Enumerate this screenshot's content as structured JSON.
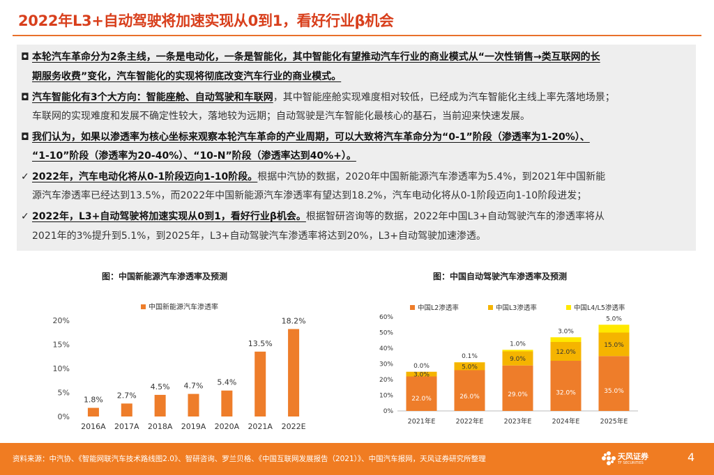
{
  "slide": {
    "title": "2022年L3+自动驾驶将加速实现从0到1，看好行业β机会",
    "page_number": "4"
  },
  "points": {
    "marker_box": "◘",
    "marker_check": "✓",
    "p1_bold_a": "本轮汽车革命分为2条主线，一条是电动化，一条是智能化，其中智能化有望推动汽车行业的商业模式从“一次性销售→类互联网的长",
    "p1_bold_b": "期服务收费”变化，汽车智能化的实现将彻底改变汽车行业的商业模式。",
    "p2_bold": "汽车智能化有3个大方向：智能座舱、自动驾驶和车联网",
    "p2_rest_a": "，其中智能座舱实现难度相对较低，已经成为汽车智能化主线上率先落地场景；",
    "p2_rest_b": "车联网的实现难度和发展不确定性较大，落地较为远期；自动驾驶是汽车智能化最核心的基石，当前迎来快速发展。",
    "p3_bold_a": "我们认为，如果以渗透率为核心坐标来观察本轮汽车革命的产业周期，可以大致将汽车革命分为“0-1”阶段（渗透率为1-20%）、",
    "p3_bold_b": "“1-10”阶段（渗透率为20-40%）、“10-N”阶段（渗透率达到40%+）。",
    "p4_bold": "2022年，汽车电动化将从0-1阶段迈向1-10阶段。",
    "p4_rest_a": "根据中汽协的数据，2020年中国新能源汽车渗透率为5.4%，到2021年中国新能",
    "p4_rest_b": "源汽车渗透率已经达到13.5%，而2022年中国新能源汽车渗透率有望达到18.2%，汽车电动化将从0-1阶段迈向1-10阶段进发；",
    "p5_bold": "2022年，L3+自动驾驶将加速实现从0到1，看好行业β机会。",
    "p5_rest_a": "根据智研咨询等的数据，2022年中国L3+自动驾驶汽车的渗透率将从",
    "p5_rest_b": "2021年的3%提升到5.1%，到2025年，L3+自动驾驶汽车渗透率将达到20%，L3+自动驾驶加速渗透。"
  },
  "chart_data": [
    {
      "type": "bar",
      "title": "图：中国新能源汽车渗透率及预测",
      "categories": [
        "2016A",
        "2017A",
        "2018A",
        "2019A",
        "2020A",
        "2021A",
        "2022E"
      ],
      "series": [
        {
          "name": "中国新能源汽车渗透率",
          "values": [
            1.8,
            2.7,
            4.5,
            4.7,
            5.4,
            13.5,
            18.2
          ],
          "color": "#ee7d2a"
        }
      ],
      "data_labels": [
        "1.8%",
        "2.7%",
        "4.5%",
        "4.7%",
        "5.4%",
        "13.5%",
        "18.2%"
      ],
      "ylim": [
        0,
        20
      ],
      "yticks": [
        "0%",
        "5%",
        "10%",
        "15%",
        "20%"
      ],
      "legend": "top",
      "grid": false
    },
    {
      "type": "bar",
      "stacked": true,
      "title": "图：中国自动驾驶汽车渗透率及预测",
      "categories": [
        "2021年E",
        "2022年E",
        "2023年E",
        "2024年E",
        "2025年E"
      ],
      "series": [
        {
          "name": "中国L2渗透率",
          "values": [
            22.0,
            26.0,
            29.0,
            32.0,
            35.0
          ],
          "labels": [
            "22.0%",
            "26.0%",
            "29.0%",
            "32.0%",
            "35.0%"
          ],
          "color": "#ee7d2a"
        },
        {
          "name": "中国L3渗透率",
          "values": [
            3.0,
            5.0,
            9.0,
            12.0,
            15.0
          ],
          "labels": [
            "3.0%",
            "5.0%",
            "9.0%",
            "12.0%",
            "15.0%"
          ],
          "color": "#f5b400"
        },
        {
          "name": "中国L4/L5渗透率",
          "values": [
            0.0,
            0.1,
            1.0,
            3.0,
            5.0
          ],
          "labels": [
            "0.0%",
            "0.1%",
            "1.0%",
            "3.0%",
            "5.0%"
          ],
          "color": "#ffe800"
        }
      ],
      "ylim": [
        0,
        60
      ],
      "yticks": [
        "0%",
        "10%",
        "20%",
        "30%",
        "40%",
        "50%",
        "60%"
      ],
      "legend": "top",
      "grid": false
    }
  ],
  "footer": {
    "source": "资料来源：中汽协、《智能网联汽车技术路线图2.0》、智研咨询、罗兰贝格、《中国互联网发展报告（2021）》、中国汽车报网，天风证券研究所整理",
    "logo_name": "天风证券",
    "logo_sub": "TF SECURITIES"
  },
  "colors": {
    "title": "#d83f1c",
    "accent": "#f07c22",
    "panel": "#eeeeee"
  }
}
